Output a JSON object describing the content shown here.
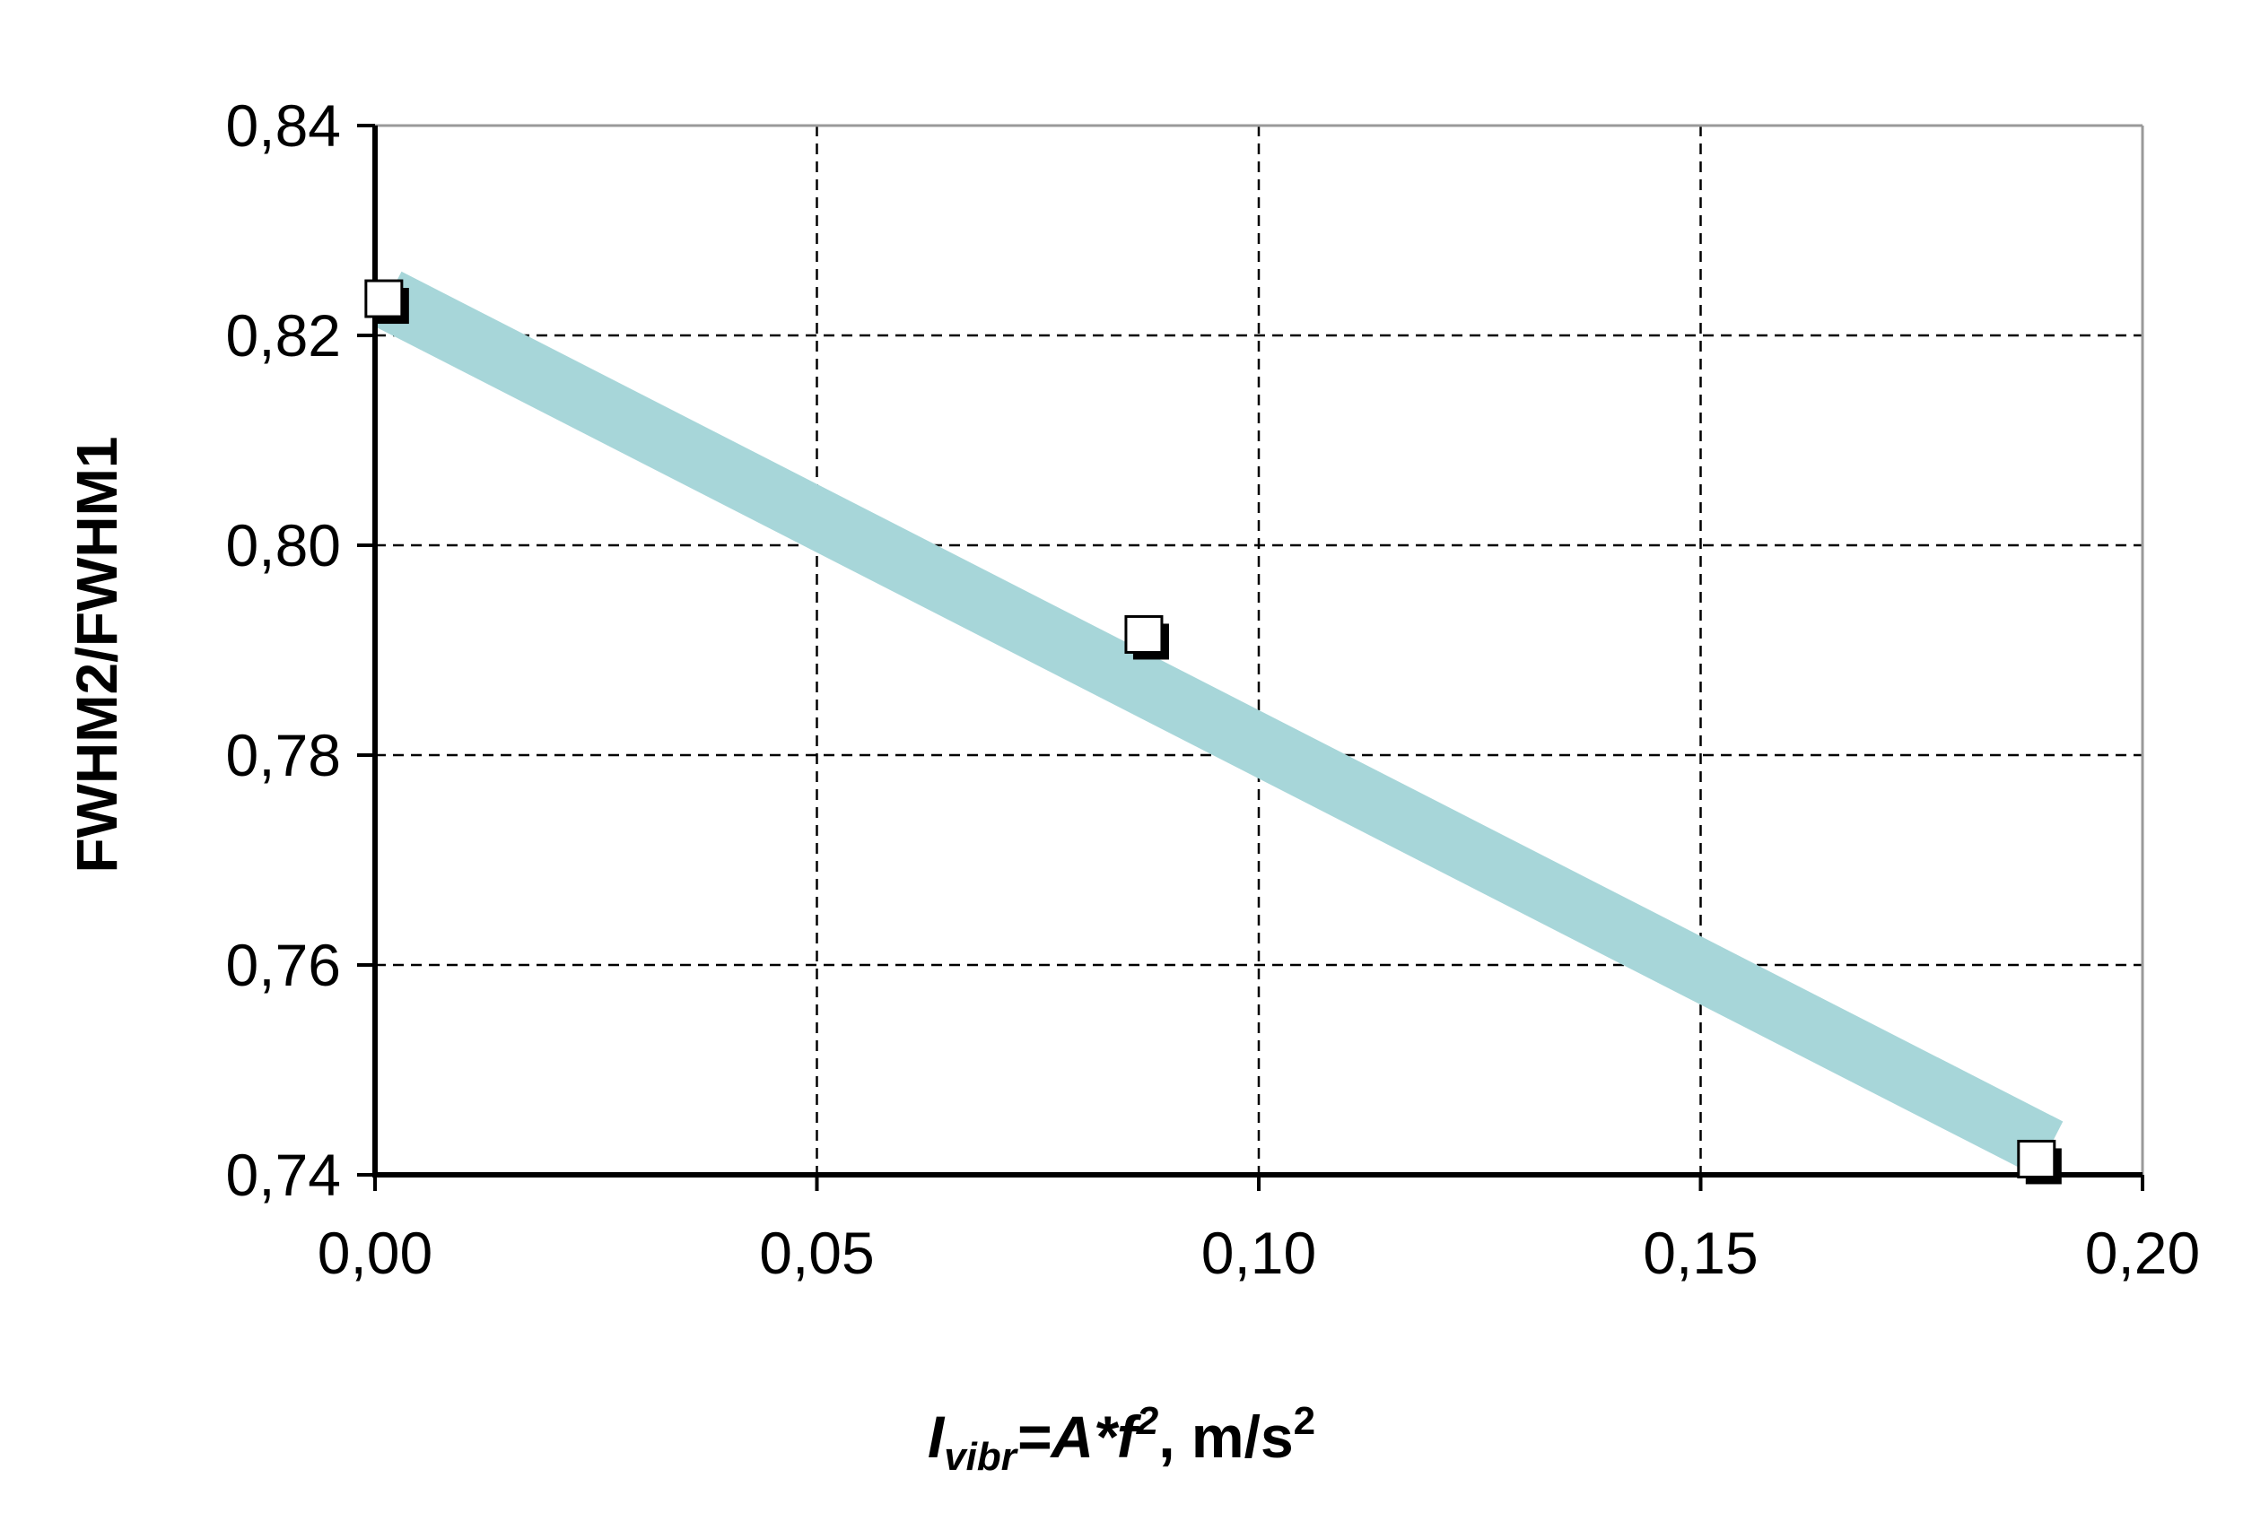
{
  "chart_data": {
    "type": "scatter",
    "title": "",
    "ylabel": "FWHM2/FWHM1",
    "xlabel": {
      "symbol": "I",
      "subscript": "vibr",
      "formula_main": "=A*f",
      "superscript": "2",
      "unit_main": ", m/s",
      "unit_superscript": "2"
    },
    "xlim": [
      0.0,
      0.2
    ],
    "ylim": [
      0.74,
      0.84
    ],
    "x_tick_labels": [
      "0,00",
      "0,05",
      "0,10",
      "0,15",
      "0,20"
    ],
    "x_ticks": [
      0.0,
      0.05,
      0.1,
      0.15,
      0.2
    ],
    "y_tick_labels": [
      "0,74",
      "0,76",
      "0,78",
      "0,80",
      "0,82",
      "0,84"
    ],
    "y_ticks": [
      0.74,
      0.76,
      0.78,
      0.8,
      0.82,
      0.84
    ],
    "grid": true,
    "series": [
      {
        "marker": "square",
        "points": [
          {
            "x": 0.001,
            "y": 0.8235
          },
          {
            "x": 0.087,
            "y": 0.7915
          },
          {
            "x": 0.188,
            "y": 0.7415
          }
        ]
      }
    ],
    "trend_band": {
      "x_start": 0.0,
      "y_start": 0.8235,
      "x_end": 0.188,
      "y_end": 0.7425,
      "color": "#a7d6d9"
    },
    "colors": {
      "axis": "#000000",
      "grid": "#000000",
      "frame": "#999999",
      "marker_fill": "#ffffff",
      "marker_shadow": "#000000"
    }
  }
}
